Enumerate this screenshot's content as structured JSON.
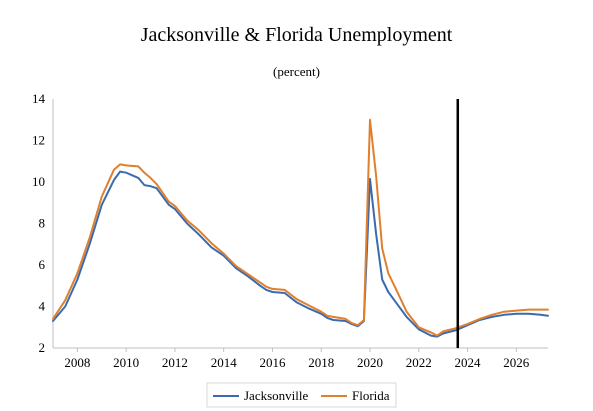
{
  "chart_data": {
    "type": "line",
    "title": "Jacksonville & Florida Unemployment",
    "subtitle": "(percent)",
    "xlabel": "",
    "ylabel": "",
    "xlim": [
      2007.0,
      2027.3
    ],
    "ylim": [
      2,
      14
    ],
    "x_ticks": [
      "2008",
      "2010",
      "2012",
      "2014",
      "2016",
      "2018",
      "2020",
      "2022",
      "2024",
      "2026"
    ],
    "y_ticks": [
      "2",
      "4",
      "6",
      "8",
      "10",
      "12",
      "14"
    ],
    "vertical_marker_x": 2023.6,
    "legend_position": "bottom",
    "grid": false,
    "series": [
      {
        "name": "Jacksonville",
        "color": "#3a6bb0",
        "points": [
          [
            2007.0,
            3.3
          ],
          [
            2007.5,
            4.0
          ],
          [
            2008.0,
            5.3
          ],
          [
            2008.5,
            7.0
          ],
          [
            2009.0,
            8.9
          ],
          [
            2009.5,
            10.1
          ],
          [
            2009.75,
            10.5
          ],
          [
            2010.0,
            10.45
          ],
          [
            2010.5,
            10.2
          ],
          [
            2010.75,
            9.85
          ],
          [
            2011.0,
            9.8
          ],
          [
            2011.25,
            9.7
          ],
          [
            2011.75,
            8.9
          ],
          [
            2012.0,
            8.7
          ],
          [
            2012.5,
            8.0
          ],
          [
            2013.0,
            7.45
          ],
          [
            2013.5,
            6.85
          ],
          [
            2014.0,
            6.45
          ],
          [
            2014.5,
            5.85
          ],
          [
            2015.0,
            5.45
          ],
          [
            2015.5,
            5.0
          ],
          [
            2015.75,
            4.8
          ],
          [
            2016.0,
            4.7
          ],
          [
            2016.5,
            4.65
          ],
          [
            2017.0,
            4.2
          ],
          [
            2017.5,
            3.9
          ],
          [
            2018.0,
            3.65
          ],
          [
            2018.25,
            3.45
          ],
          [
            2018.5,
            3.35
          ],
          [
            2019.0,
            3.3
          ],
          [
            2019.25,
            3.15
          ],
          [
            2019.5,
            3.05
          ],
          [
            2019.75,
            3.3
          ],
          [
            2020.0,
            10.15
          ],
          [
            2020.25,
            7.5
          ],
          [
            2020.5,
            5.3
          ],
          [
            2020.75,
            4.7
          ],
          [
            2021.0,
            4.3
          ],
          [
            2021.5,
            3.5
          ],
          [
            2022.0,
            2.9
          ],
          [
            2022.5,
            2.6
          ],
          [
            2022.75,
            2.55
          ],
          [
            2023.0,
            2.7
          ],
          [
            2023.5,
            2.85
          ],
          [
            2024.0,
            3.1
          ],
          [
            2024.5,
            3.35
          ],
          [
            2025.0,
            3.5
          ],
          [
            2025.5,
            3.6
          ],
          [
            2026.0,
            3.65
          ],
          [
            2026.5,
            3.65
          ],
          [
            2027.0,
            3.6
          ],
          [
            2027.3,
            3.55
          ]
        ]
      },
      {
        "name": "Florida",
        "color": "#e07f2c",
        "points": [
          [
            2007.0,
            3.4
          ],
          [
            2007.5,
            4.3
          ],
          [
            2008.0,
            5.6
          ],
          [
            2008.5,
            7.3
          ],
          [
            2009.0,
            9.3
          ],
          [
            2009.5,
            10.6
          ],
          [
            2009.75,
            10.85
          ],
          [
            2010.0,
            10.8
          ],
          [
            2010.5,
            10.75
          ],
          [
            2010.75,
            10.45
          ],
          [
            2011.0,
            10.2
          ],
          [
            2011.25,
            9.9
          ],
          [
            2011.75,
            9.05
          ],
          [
            2012.0,
            8.85
          ],
          [
            2012.5,
            8.15
          ],
          [
            2013.0,
            7.65
          ],
          [
            2013.5,
            7.05
          ],
          [
            2014.0,
            6.55
          ],
          [
            2014.5,
            5.95
          ],
          [
            2015.0,
            5.55
          ],
          [
            2015.5,
            5.15
          ],
          [
            2015.75,
            4.95
          ],
          [
            2016.0,
            4.85
          ],
          [
            2016.5,
            4.8
          ],
          [
            2017.0,
            4.35
          ],
          [
            2017.5,
            4.05
          ],
          [
            2018.0,
            3.75
          ],
          [
            2018.25,
            3.55
          ],
          [
            2018.5,
            3.5
          ],
          [
            2019.0,
            3.4
          ],
          [
            2019.25,
            3.2
          ],
          [
            2019.5,
            3.1
          ],
          [
            2019.75,
            3.35
          ],
          [
            2020.0,
            13.0
          ],
          [
            2020.25,
            10.3
          ],
          [
            2020.5,
            6.8
          ],
          [
            2020.75,
            5.6
          ],
          [
            2021.0,
            5.0
          ],
          [
            2021.5,
            3.75
          ],
          [
            2022.0,
            3.0
          ],
          [
            2022.5,
            2.75
          ],
          [
            2022.75,
            2.6
          ],
          [
            2023.0,
            2.8
          ],
          [
            2023.5,
            2.95
          ],
          [
            2024.0,
            3.15
          ],
          [
            2024.5,
            3.4
          ],
          [
            2025.0,
            3.6
          ],
          [
            2025.5,
            3.75
          ],
          [
            2026.0,
            3.8
          ],
          [
            2026.5,
            3.85
          ],
          [
            2027.0,
            3.85
          ],
          [
            2027.3,
            3.85
          ]
        ]
      }
    ]
  }
}
